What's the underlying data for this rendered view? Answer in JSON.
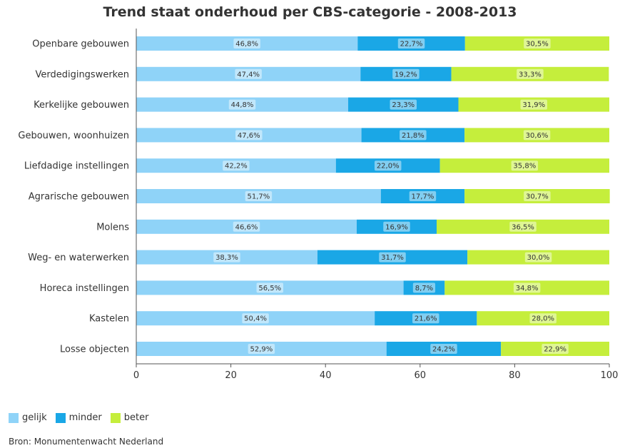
{
  "chart_data": {
    "type": "bar",
    "orientation": "horizontal",
    "stacked": true,
    "title": "Trend staat onderhoud per CBS-categorie - 2008-2013",
    "categories": [
      "Openbare gebouwen",
      "Verdedigingswerken",
      "Kerkelijke gebouwen",
      "Gebouwen, woonhuizen",
      "Liefdadige instellingen",
      "Agrarische gebouwen",
      "Molens",
      "Weg- en waterwerken",
      "Horeca instellingen",
      "Kastelen",
      "Losse objecten"
    ],
    "series": [
      {
        "name": "gelijk",
        "color": "#8fd3f8",
        "values": [
          46.8,
          47.4,
          44.8,
          47.6,
          42.2,
          51.7,
          46.6,
          38.3,
          56.5,
          50.4,
          52.9
        ]
      },
      {
        "name": "minder",
        "color": "#1aa7e6",
        "values": [
          22.7,
          19.2,
          23.3,
          21.8,
          22.0,
          17.7,
          16.9,
          31.7,
          8.7,
          21.6,
          24.2
        ]
      },
      {
        "name": "beter",
        "color": "#c5ee3c",
        "values": [
          30.5,
          33.3,
          31.9,
          30.6,
          35.8,
          30.7,
          36.5,
          30.0,
          34.8,
          28.0,
          22.9
        ]
      }
    ],
    "data_labels": [
      [
        "46,8%",
        "22,7%",
        "30,5%"
      ],
      [
        "47,4%",
        "19,2%",
        "33,3%"
      ],
      [
        "44,8%",
        "23,3%",
        "31,9%"
      ],
      [
        "47,6%",
        "21,8%",
        "30,6%"
      ],
      [
        "42,2%",
        "22,0%",
        "35,8%"
      ],
      [
        "51,7%",
        "17,7%",
        "30,7%"
      ],
      [
        "46,6%",
        "16,9%",
        "36,5%"
      ],
      [
        "38,3%",
        "31,7%",
        "30,0%"
      ],
      [
        "56,5%",
        "8,7%",
        "34,8%"
      ],
      [
        "50,4%",
        "21,6%",
        "28,0%"
      ],
      [
        "52,9%",
        "24,2%",
        "22,9%"
      ]
    ],
    "xlim": [
      0,
      100
    ],
    "xticks": [
      0,
      20,
      40,
      60,
      80,
      100
    ],
    "grid": false,
    "legend_position": "bottom-left"
  },
  "source": "Bron: Monumentenwacht Nederland"
}
